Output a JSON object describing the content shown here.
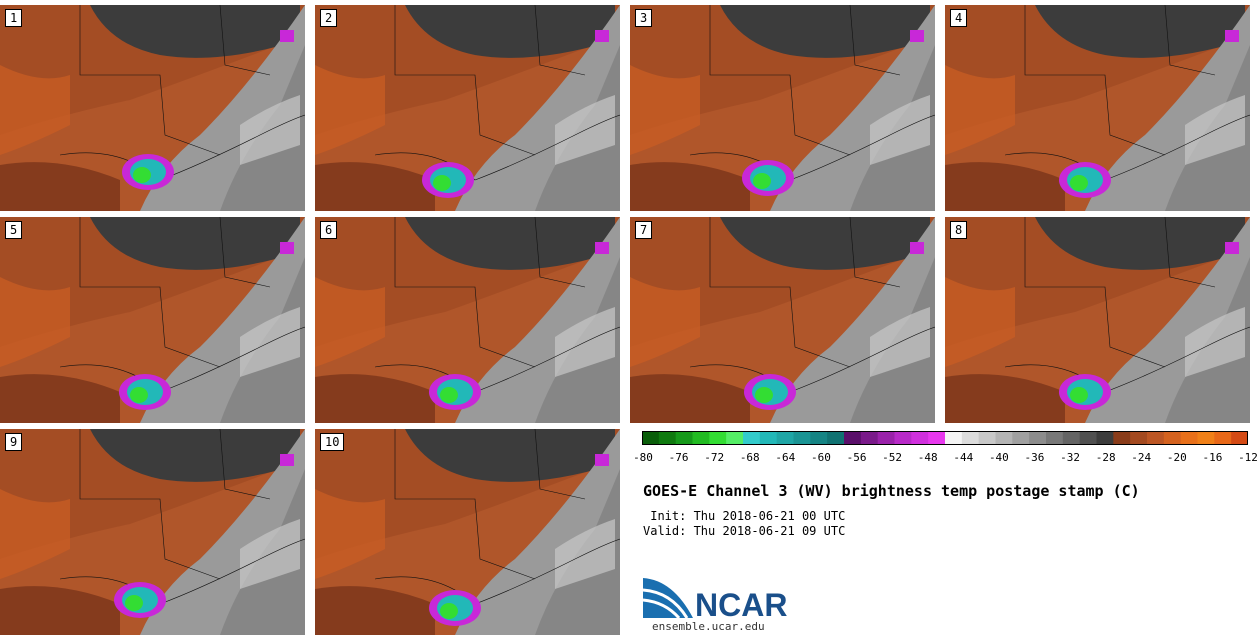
{
  "panels": [
    {
      "label": "1"
    },
    {
      "label": "2"
    },
    {
      "label": "3"
    },
    {
      "label": "4"
    },
    {
      "label": "5"
    },
    {
      "label": "6"
    },
    {
      "label": "7"
    },
    {
      "label": "8"
    },
    {
      "label": "9"
    },
    {
      "label": "10"
    }
  ],
  "colorbar": {
    "ticks": [
      "-80",
      "-76",
      "-72",
      "-68",
      "-64",
      "-60",
      "-56",
      "-52",
      "-48",
      "-44",
      "-40",
      "-36",
      "-32",
      "-28",
      "-24",
      "-20",
      "-16",
      "-12"
    ],
    "colors": [
      "#0a5e0a",
      "#0f7a0f",
      "#16991a",
      "#22bb22",
      "#33dd33",
      "#55ee66",
      "#33cccc",
      "#22b8b8",
      "#1fa6a6",
      "#1a9494",
      "#158484",
      "#107272",
      "#5a0f6a",
      "#7a1a8a",
      "#9a22aa",
      "#b82ac8",
      "#d030dd",
      "#e838ee",
      "#f4f4f4",
      "#dcdcdc",
      "#c8c8c8",
      "#b4b4b4",
      "#a0a0a0",
      "#8c8c8c",
      "#787878",
      "#646464",
      "#505050",
      "#3c3c3c",
      "#8a3c1a",
      "#a44a20",
      "#bc5624",
      "#d4621f",
      "#e8701a",
      "#f08018",
      "#e86818",
      "#d44a14"
    ]
  },
  "title": "GOES-E Channel 3 (WV) brightness temp postage stamp (C)",
  "init": " Init: Thu 2018-06-21 00 UTC",
  "valid": "Valid: Thu 2018-06-21 09 UTC",
  "logo": {
    "text": "NCAR",
    "url": "ensemble.ucar.edu"
  },
  "colors": {
    "dry": "#b0562a",
    "drier": "#8a3c1a",
    "moist": "#9a9a9a",
    "storm_green": "#33dd33",
    "storm_cyan": "#22b8b8",
    "anvil": "#c828d8"
  }
}
